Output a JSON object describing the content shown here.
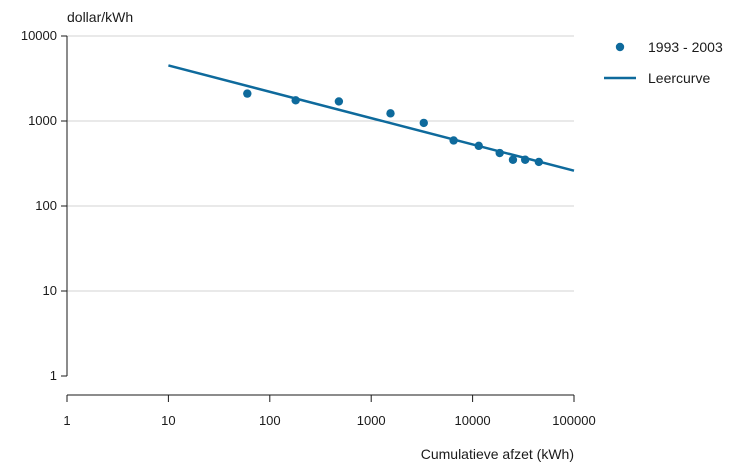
{
  "chart_data": {
    "type": "scatter",
    "title": "",
    "xlabel": "Cumulatieve afzet (kWh)",
    "ylabel": "dollar/kWh",
    "x_scale": "log",
    "y_scale": "log",
    "xlim": [
      1,
      100000
    ],
    "ylim": [
      1,
      10000
    ],
    "x_ticks": [
      1,
      10,
      100,
      1000,
      10000,
      100000
    ],
    "x_tick_labels": [
      "1",
      "10",
      "100",
      "1000",
      "10000",
      "100000"
    ],
    "y_ticks": [
      1,
      10,
      100,
      1000,
      10000
    ],
    "y_tick_labels": [
      "1",
      "10",
      "100",
      "1000",
      "10000"
    ],
    "grid": "horizontal",
    "legend_position": "top-right",
    "color": "#0e6a9c",
    "series": [
      {
        "name": "1993 - 2003",
        "kind": "scatter",
        "x": [
          60,
          180,
          480,
          1550,
          3300,
          6500,
          11500,
          18500,
          25000,
          33000,
          45000
        ],
        "y": [
          2100,
          1750,
          1700,
          1230,
          950,
          590,
          510,
          420,
          350,
          350,
          330
        ]
      },
      {
        "name": "Leercurve",
        "kind": "line",
        "x": [
          10,
          100000
        ],
        "y": [
          4500,
          260
        ]
      }
    ]
  }
}
